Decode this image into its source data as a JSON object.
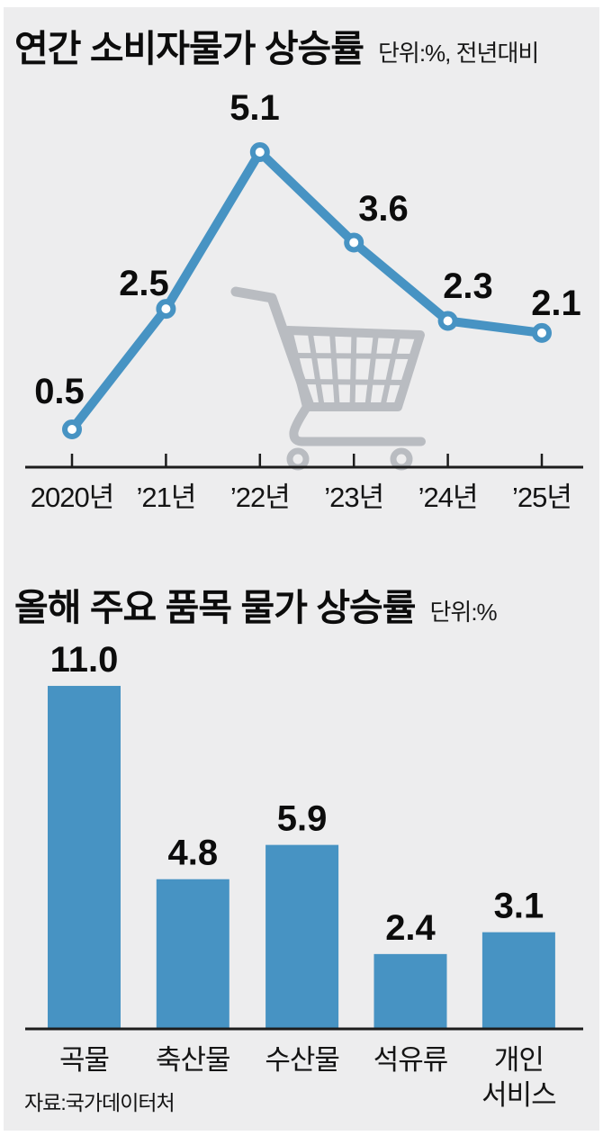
{
  "colors": {
    "accent_blue": "#4793c3",
    "cart_gray": "#b9bcc1",
    "axis_dark": "#1c1c1c",
    "panel_background": "#ededee",
    "text_black": "#0c0c0c"
  },
  "icons": {
    "cart": "shopping-cart-icon"
  },
  "source_label": "자료:국가데이터처",
  "chart_data": [
    {
      "type": "line",
      "title": "연간 소비자물가 상승률",
      "unit_label": "단위:%, 전년대비",
      "categories": [
        "2020년",
        "’21년",
        "’22년",
        "’23년",
        "’24년",
        "’25년"
      ],
      "values": [
        0.5,
        2.5,
        5.1,
        3.6,
        2.3,
        2.1
      ],
      "ylim": [
        0,
        6
      ],
      "grid": false,
      "legend": "none",
      "annotations": [
        "gray shopping cart background illustration"
      ]
    },
    {
      "type": "bar",
      "title": "올해 주요 품목 물가 상승률",
      "unit_label": "단위:%",
      "categories": [
        "곡물",
        "축산물",
        "수산물",
        "석유류",
        "개인\n서비스"
      ],
      "values": [
        11.0,
        4.8,
        5.9,
        2.4,
        3.1
      ],
      "ylim": [
        0,
        12
      ],
      "grid": false,
      "legend": "none"
    }
  ]
}
